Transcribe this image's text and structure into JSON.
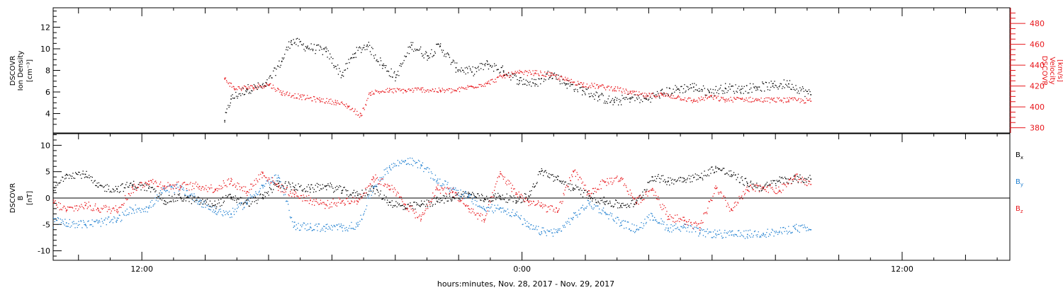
{
  "colors": {
    "black": "#000000",
    "red": "#e8161b",
    "blue": "#1f7fd0"
  },
  "x_axis": {
    "title": "hours:minutes, Nov. 28, 2017 - Nov. 29, 2017",
    "ticks": [
      {
        "hour": 12,
        "label": "12:00"
      },
      {
        "hour": 24,
        "label": "0:00"
      },
      {
        "hour": 36,
        "label": "12:00"
      }
    ],
    "range_hours": [
      9.2,
      39.4
    ]
  },
  "chart_data": [
    {
      "type": "scatter",
      "panel": "top",
      "ylabel_left": [
        "DSCOVR",
        "Ion Density",
        "[cm⁻³]"
      ],
      "ylabel_right": [
        "DSCOVR",
        "Velocity",
        "[km/s]"
      ],
      "ylim_left": [
        2.2,
        13.8
      ],
      "ylim_right": [
        375,
        495
      ],
      "yticks_left": [
        4,
        6,
        8,
        10,
        12
      ],
      "yticks_right": [
        380,
        400,
        420,
        440,
        460,
        480
      ],
      "data_start_hour": 14.6,
      "data_end_hour": 33.1,
      "series": [
        {
          "name": "Ion Density",
          "color": "#000000",
          "axis": "left",
          "points": [
            [
              14.6,
              3.4
            ],
            [
              14.8,
              5.4
            ],
            [
              15.3,
              6.3
            ],
            [
              15.9,
              6.6
            ],
            [
              16.4,
              8.9
            ],
            [
              16.7,
              10.8
            ],
            [
              17.2,
              10.2
            ],
            [
              17.8,
              9.8
            ],
            [
              18.3,
              7.6
            ],
            [
              18.7,
              9.6
            ],
            [
              19.1,
              10.4
            ],
            [
              19.6,
              8.5
            ],
            [
              20.0,
              7.4
            ],
            [
              20.5,
              10.4
            ],
            [
              21.0,
              9.4
            ],
            [
              21.4,
              10.3
            ],
            [
              21.9,
              8.3
            ],
            [
              22.4,
              7.9
            ],
            [
              22.9,
              8.6
            ],
            [
              23.4,
              8.0
            ],
            [
              23.9,
              7.1
            ],
            [
              24.4,
              6.8
            ],
            [
              24.9,
              7.8
            ],
            [
              25.4,
              6.8
            ],
            [
              25.9,
              6.2
            ],
            [
              26.4,
              5.6
            ],
            [
              26.9,
              5.1
            ],
            [
              27.4,
              5.5
            ],
            [
              27.9,
              5.4
            ],
            [
              28.4,
              5.9
            ],
            [
              28.9,
              6.3
            ],
            [
              29.4,
              6.5
            ],
            [
              29.9,
              6.0
            ],
            [
              30.4,
              6.4
            ],
            [
              30.9,
              6.3
            ],
            [
              31.4,
              6.5
            ],
            [
              31.9,
              6.6
            ],
            [
              32.4,
              6.8
            ],
            [
              33.1,
              5.8
            ]
          ]
        },
        {
          "name": "Velocity",
          "color": "#e8161b",
          "axis": "right",
          "points": [
            [
              14.6,
              428
            ],
            [
              14.9,
              418
            ],
            [
              15.5,
              419
            ],
            [
              16.0,
              422
            ],
            [
              16.4,
              414
            ],
            [
              17.0,
              410
            ],
            [
              17.6,
              407
            ],
            [
              18.1,
              405
            ],
            [
              18.5,
              401
            ],
            [
              18.9,
              392
            ],
            [
              19.2,
              414
            ],
            [
              19.8,
              416
            ],
            [
              20.3,
              416
            ],
            [
              20.8,
              417
            ],
            [
              21.4,
              416
            ],
            [
              21.9,
              416
            ],
            [
              22.4,
              420
            ],
            [
              22.9,
              423
            ],
            [
              23.4,
              430
            ],
            [
              23.9,
              433
            ],
            [
              24.4,
              433
            ],
            [
              24.9,
              431
            ],
            [
              25.4,
              426
            ],
            [
              25.9,
              422
            ],
            [
              26.4,
              420
            ],
            [
              26.9,
              418
            ],
            [
              27.4,
              414
            ],
            [
              27.9,
              411
            ],
            [
              28.4,
              412
            ],
            [
              28.9,
              410
            ],
            [
              29.4,
              406
            ],
            [
              29.9,
              410
            ],
            [
              30.4,
              407
            ],
            [
              30.9,
              408
            ],
            [
              31.4,
              407
            ],
            [
              31.9,
              407
            ],
            [
              32.4,
              407
            ],
            [
              33.1,
              406
            ]
          ]
        }
      ]
    },
    {
      "type": "line",
      "panel": "bottom",
      "ylabel_left": [
        "DSCOVR",
        "B",
        "[nT]"
      ],
      "ylim": [
        -11.8,
        12.2
      ],
      "yticks": [
        -10,
        -5,
        0,
        5,
        10
      ],
      "zero_line": true,
      "series": [
        {
          "name": "B",
          "sub": "x",
          "color": "#000000",
          "points": [
            [
              9.2,
              1.5
            ],
            [
              9.6,
              4.6
            ],
            [
              10.2,
              4.6
            ],
            [
              10.6,
              2.2
            ],
            [
              11.2,
              1.8
            ],
            [
              11.7,
              2.6
            ],
            [
              12.2,
              2.0
            ],
            [
              12.7,
              -0.4
            ],
            [
              13.2,
              0.2
            ],
            [
              13.8,
              -0.5
            ],
            [
              14.3,
              -1.2
            ],
            [
              14.8,
              0.3
            ],
            [
              15.3,
              -0.9
            ],
            [
              15.8,
              0.2
            ],
            [
              16.3,
              2.9
            ],
            [
              16.8,
              2.1
            ],
            [
              17.3,
              1.8
            ],
            [
              17.8,
              2.4
            ],
            [
              18.3,
              1.5
            ],
            [
              18.8,
              0.6
            ],
            [
              19.3,
              1.9
            ],
            [
              19.8,
              -0.7
            ],
            [
              20.3,
              -1.8
            ],
            [
              20.8,
              -1.2
            ],
            [
              21.3,
              -0.5
            ],
            [
              21.8,
              0.3
            ],
            [
              22.3,
              0.9
            ],
            [
              22.8,
              -0.1
            ],
            [
              23.3,
              0.4
            ],
            [
              23.8,
              -0.4
            ],
            [
              24.2,
              0.5
            ],
            [
              24.6,
              5.2
            ],
            [
              25.1,
              3.6
            ],
            [
              25.6,
              2.0
            ],
            [
              26.1,
              0.5
            ],
            [
              26.6,
              -0.6
            ],
            [
              27.1,
              -1.3
            ],
            [
              27.6,
              -0.9
            ],
            [
              28.1,
              4.1
            ],
            [
              28.6,
              3.3
            ],
            [
              29.1,
              3.8
            ],
            [
              29.6,
              4.0
            ],
            [
              30.1,
              5.8
            ],
            [
              30.6,
              4.5
            ],
            [
              31.1,
              2.9
            ],
            [
              31.6,
              2.0
            ],
            [
              32.1,
              3.4
            ],
            [
              32.6,
              3.7
            ],
            [
              33.1,
              3.7
            ]
          ]
        },
        {
          "name": "B",
          "sub": "y",
          "color": "#1f7fd0",
          "points": [
            [
              9.2,
              -3.8
            ],
            [
              9.6,
              -4.6
            ],
            [
              10.2,
              -4.9
            ],
            [
              10.6,
              -4.6
            ],
            [
              11.2,
              -4.1
            ],
            [
              11.7,
              -2.0
            ],
            [
              12.2,
              -1.8
            ],
            [
              12.7,
              1.6
            ],
            [
              13.2,
              2.0
            ],
            [
              13.8,
              -0.5
            ],
            [
              14.3,
              -2.4
            ],
            [
              14.8,
              -2.9
            ],
            [
              15.3,
              -0.7
            ],
            [
              15.8,
              2.4
            ],
            [
              16.3,
              4.0
            ],
            [
              16.8,
              -5.2
            ],
            [
              17.3,
              -5.4
            ],
            [
              17.8,
              -5.6
            ],
            [
              18.3,
              -5.5
            ],
            [
              18.8,
              -5.2
            ],
            [
              19.3,
              2.1
            ],
            [
              19.8,
              5.9
            ],
            [
              20.3,
              7.2
            ],
            [
              20.8,
              6.4
            ],
            [
              21.3,
              3.4
            ],
            [
              21.8,
              1.8
            ],
            [
              22.3,
              0.3
            ],
            [
              22.8,
              -2.1
            ],
            [
              23.3,
              -1.8
            ],
            [
              23.8,
              -3.1
            ],
            [
              24.2,
              -5.4
            ],
            [
              24.6,
              -6.3
            ],
            [
              25.1,
              -6.4
            ],
            [
              25.6,
              -3.6
            ],
            [
              26.1,
              -0.9
            ],
            [
              26.6,
              -2.6
            ],
            [
              27.1,
              -4.6
            ],
            [
              27.6,
              -5.9
            ],
            [
              28.1,
              -3.3
            ],
            [
              28.6,
              -5.6
            ],
            [
              29.1,
              -5.4
            ],
            [
              29.6,
              -6.5
            ],
            [
              30.1,
              -6.7
            ],
            [
              30.6,
              -6.9
            ],
            [
              31.1,
              -6.8
            ],
            [
              31.6,
              -6.6
            ],
            [
              32.1,
              -6.4
            ],
            [
              32.6,
              -5.6
            ],
            [
              33.1,
              -5.9
            ]
          ]
        },
        {
          "name": "B",
          "sub": "z",
          "color": "#e8161b",
          "points": [
            [
              9.2,
              -0.8
            ],
            [
              9.6,
              -2.2
            ],
            [
              10.2,
              -1.3
            ],
            [
              10.6,
              -1.9
            ],
            [
              11.2,
              -2.1
            ],
            [
              11.7,
              1.8
            ],
            [
              12.2,
              3.3
            ],
            [
              12.7,
              2.4
            ],
            [
              13.2,
              2.4
            ],
            [
              13.8,
              2.3
            ],
            [
              14.3,
              1.8
            ],
            [
              14.8,
              3.3
            ],
            [
              15.3,
              1.3
            ],
            [
              15.8,
              4.8
            ],
            [
              16.3,
              2.2
            ],
            [
              16.8,
              0.8
            ],
            [
              17.3,
              -0.3
            ],
            [
              17.8,
              -1.2
            ],
            [
              18.3,
              -0.5
            ],
            [
              18.8,
              -0.5
            ],
            [
              19.3,
              3.9
            ],
            [
              19.8,
              2.4
            ],
            [
              20.3,
              -1.1
            ],
            [
              20.8,
              -3.9
            ],
            [
              21.3,
              1.9
            ],
            [
              21.8,
              1.3
            ],
            [
              22.3,
              -1.9
            ],
            [
              22.8,
              -4.1
            ],
            [
              23.3,
              4.7
            ],
            [
              23.8,
              1.1
            ],
            [
              24.2,
              -0.7
            ],
            [
              24.6,
              -1.4
            ],
            [
              25.1,
              -2.6
            ],
            [
              25.6,
              5.2
            ],
            [
              26.1,
              0.9
            ],
            [
              26.6,
              3.1
            ],
            [
              27.1,
              3.8
            ],
            [
              27.6,
              -0.7
            ],
            [
              28.1,
              1.9
            ],
            [
              28.6,
              -3.4
            ],
            [
              29.1,
              -4.2
            ],
            [
              29.6,
              -5.5
            ],
            [
              30.1,
              1.9
            ],
            [
              30.6,
              -2.2
            ],
            [
              31.1,
              1.6
            ],
            [
              31.6,
              2.2
            ],
            [
              32.1,
              1.4
            ],
            [
              32.6,
              4.1
            ],
            [
              33.1,
              2.7
            ]
          ]
        }
      ]
    }
  ]
}
